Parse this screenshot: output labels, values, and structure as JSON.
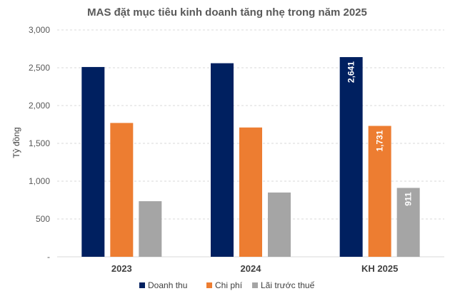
{
  "chart_data": {
    "type": "bar",
    "title": "MAS đặt mục tiêu kinh doanh tăng nhẹ trong năm 2025",
    "ylabel": "Tỷ đồng",
    "xlabel": "",
    "categories": [
      "2023",
      "2024",
      "KH 2025"
    ],
    "series": [
      {
        "name": "Doanh thu",
        "color": "#002060",
        "values": [
          2510,
          2560,
          2641
        ],
        "labels": [
          null,
          null,
          "2,641"
        ]
      },
      {
        "name": "Chi phí",
        "color": "#ED7D31",
        "values": [
          1770,
          1710,
          1731
        ],
        "labels": [
          null,
          null,
          "1,731"
        ]
      },
      {
        "name": "Lãi trước thuế",
        "color": "#A5A5A5",
        "values": [
          735,
          850,
          911
        ],
        "labels": [
          null,
          null,
          "911"
        ]
      }
    ],
    "ylim": [
      0,
      3000
    ],
    "yticks": [
      0,
      500,
      1000,
      1500,
      2000,
      2500,
      3000
    ],
    "ytick_labels": [
      "-",
      "500",
      "1,000",
      "1,500",
      "2,000",
      "2,500",
      "3,000"
    ],
    "grid": true,
    "legend_position": "bottom"
  }
}
